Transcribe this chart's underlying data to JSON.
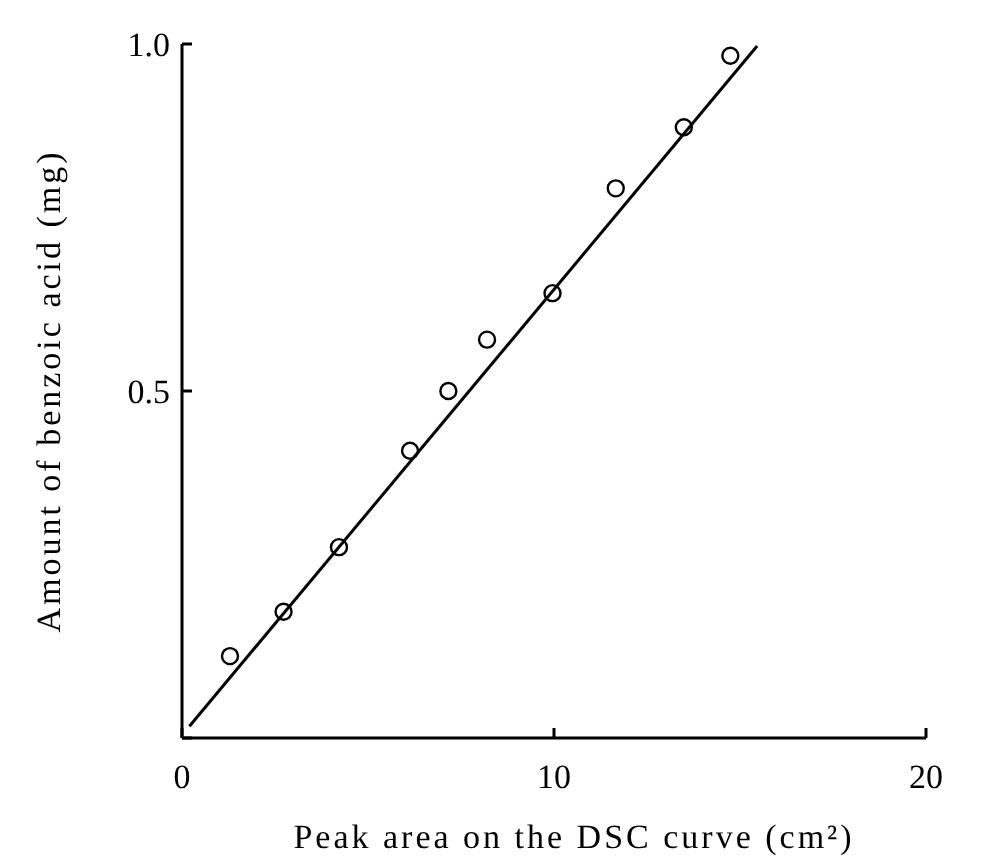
{
  "chart_data": {
    "type": "scatter",
    "xlabel": "Peak area on the DSC curve (cm²)",
    "ylabel": "Amount of benzoic acid (mg)",
    "xlim": [
      0,
      20
    ],
    "ylim": [
      0,
      1.0
    ],
    "xticks": [
      0,
      10,
      20
    ],
    "yticks": [
      {
        "value": 0,
        "label": null
      },
      {
        "value": 0.5,
        "label": "0.5"
      },
      {
        "value": 1.0,
        "label": "1.0"
      }
    ],
    "series": [
      {
        "marker": "circle",
        "color": "#000000",
        "x": [
          1.29,
          2.73,
          4.22,
          6.13,
          7.16,
          8.2,
          9.96,
          11.66,
          13.49,
          14.74
        ],
        "values": [
          0.118,
          0.182,
          0.275,
          0.414,
          0.5,
          0.574,
          0.641,
          0.792,
          0.88,
          0.983
        ]
      },
      {
        "type": "line",
        "color": "#000000",
        "x": [
          0.2,
          15.46
        ],
        "values": [
          0.017,
          0.997
        ]
      }
    ]
  }
}
